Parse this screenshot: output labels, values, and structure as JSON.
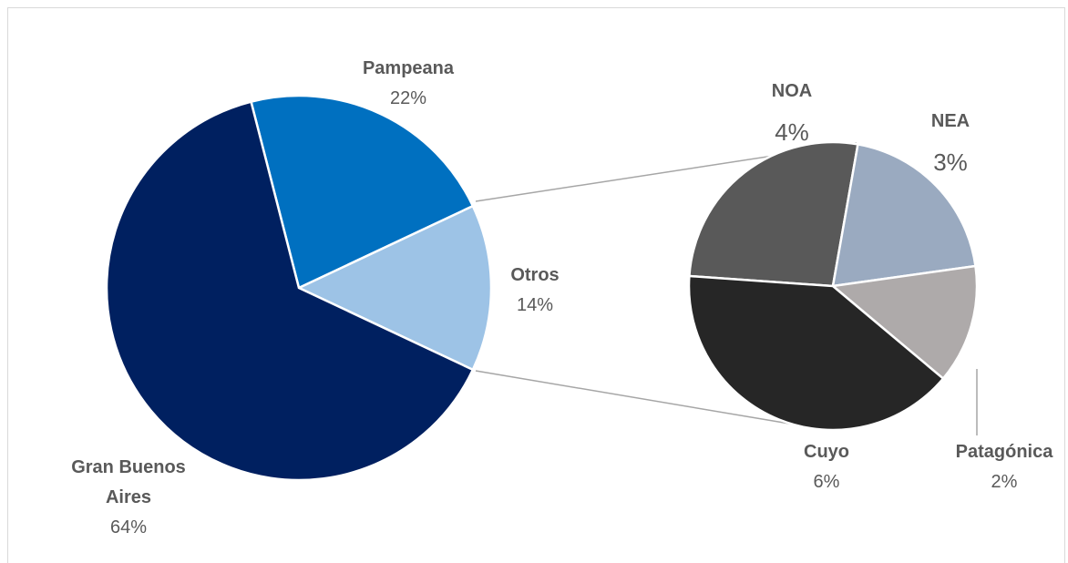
{
  "chart_data": {
    "type": "pie-of-pie",
    "categories": [
      "Pampeana",
      "Otros",
      "Gran Buenos Aires"
    ],
    "values": [
      22,
      14,
      64
    ],
    "value_labels": [
      "22%",
      "14%",
      "64%"
    ],
    "colors": [
      "#0070c0",
      "#9dc3e6",
      "#002060"
    ],
    "secondary": {
      "categories": [
        "NOA",
        "NEA",
        "Patagónica",
        "Cuyo"
      ],
      "values": [
        4,
        3,
        2,
        6
      ],
      "value_labels": [
        "4%",
        "3%",
        "2%",
        "6%"
      ],
      "colors": [
        "#595959",
        "#9aaac0",
        "#aeaaaa",
        "#262626"
      ]
    }
  }
}
